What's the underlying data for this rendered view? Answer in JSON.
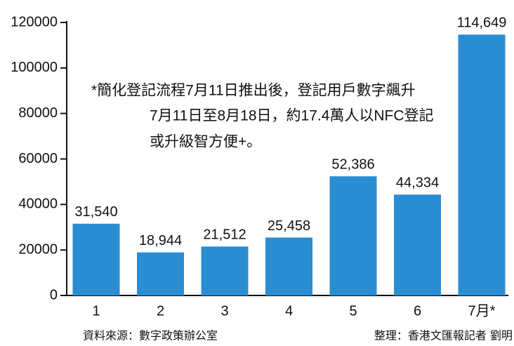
{
  "chart_data": {
    "type": "bar",
    "categories": [
      "1",
      "2",
      "3",
      "4",
      "5",
      "6",
      "7月*"
    ],
    "values": [
      31540,
      18944,
      21512,
      25458,
      52386,
      44334,
      114649
    ],
    "value_labels": [
      "31,540",
      "18,944",
      "21,512",
      "25,458",
      "52,386",
      "44,334",
      "114,649"
    ],
    "color": "#2a8dd2",
    "ylim": [
      0,
      120000
    ],
    "yticks": [
      0,
      20000,
      40000,
      60000,
      80000,
      100000,
      120000
    ],
    "annotations": [
      "*簡化登記流程7月11日推出後，登記用戶數字飆升",
      "7月11日至8月18日，約17.4萬人以NFC登記",
      "或升級智方便+。"
    ],
    "source": "資料來源：數字政策辦公室",
    "credit": "整理：香港文匯報記者 劉明"
  }
}
